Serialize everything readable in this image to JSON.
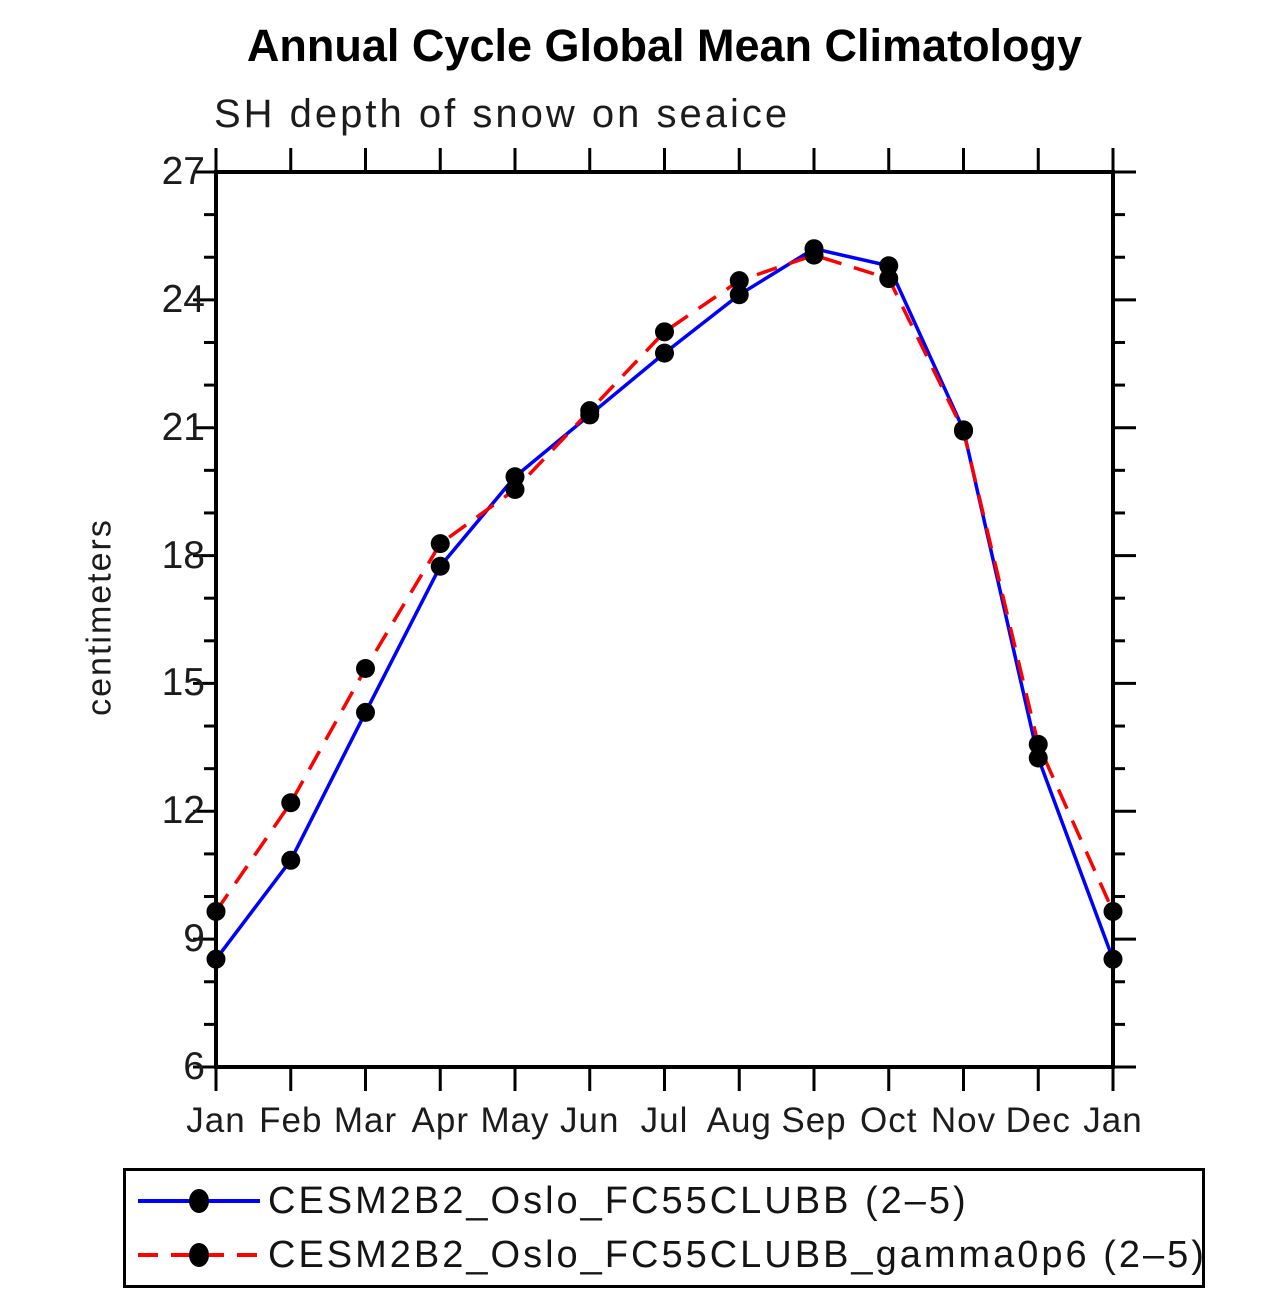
{
  "chart_data": {
    "type": "line",
    "title": "Annual Cycle Global Mean Climatology",
    "subtitle": "SH depth of snow on seaice",
    "ylabel": "centimeters",
    "ylim": [
      6,
      27
    ],
    "ytick_major_step": 3,
    "ytick_minor_step": 1,
    "grid": false,
    "legend_position": "bottom-left-box",
    "marker": "filled-circle",
    "marker_color": "#000000",
    "categories": [
      "Jan",
      "Feb",
      "Mar",
      "Apr",
      "May",
      "Jun",
      "Jul",
      "Aug",
      "Sep",
      "Oct",
      "Nov",
      "Dec",
      "Jan"
    ],
    "series": [
      {
        "name": "CESM2B2_Oslo_FC55CLUBB (2–5)",
        "color": "#0000ff",
        "line_style": "solid",
        "values": [
          8.53,
          10.85,
          14.32,
          17.75,
          19.85,
          21.3,
          22.75,
          24.12,
          25.2,
          24.8,
          20.95,
          13.25,
          8.53
        ]
      },
      {
        "name": "CESM2B2_Oslo_FC55CLUBB_gamma0p6 (2–5)",
        "color": "#ff0000",
        "line_style": "dashed",
        "values": [
          9.65,
          12.2,
          15.35,
          18.28,
          19.55,
          21.4,
          23.25,
          24.45,
          25.05,
          24.5,
          20.92,
          13.57,
          9.65
        ]
      }
    ]
  }
}
